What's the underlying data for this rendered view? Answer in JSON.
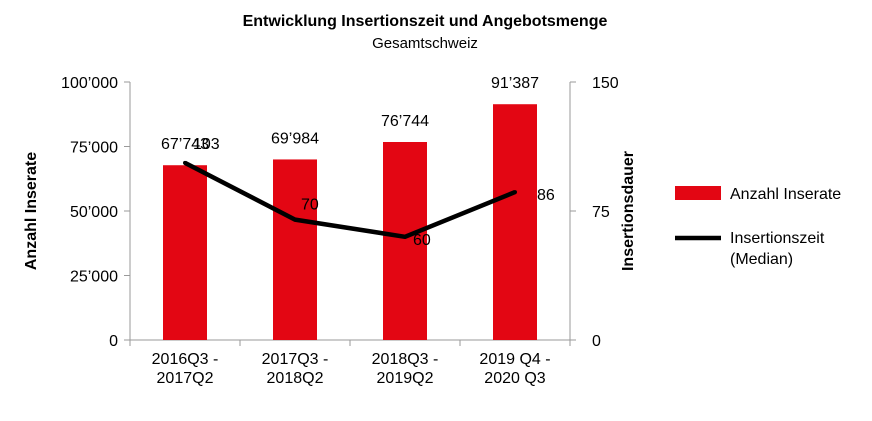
{
  "chart_data": {
    "type": "bar",
    "title": "Entwicklung Insertionszeit und Angebotsmenge",
    "subtitle": "Gesamtschweiz",
    "categories": [
      [
        "2016Q3 -",
        "2017Q2"
      ],
      [
        "2017Q3 -",
        "2018Q2"
      ],
      [
        "2018Q3 -",
        "2019Q2"
      ],
      [
        "2019 Q4 -",
        "2020 Q3"
      ]
    ],
    "ylabel": "Anzahl Inserate",
    "y2label": "Insertionsdauer",
    "ylim": [
      0,
      100000
    ],
    "y2lim": [
      0,
      150
    ],
    "yticks": [
      {
        "value": 0,
        "label": "0"
      },
      {
        "value": 25000,
        "label": "25’000"
      },
      {
        "value": 50000,
        "label": "50’000"
      },
      {
        "value": 75000,
        "label": "75’000"
      },
      {
        "value": 100000,
        "label": "100’000"
      }
    ],
    "y2ticks": [
      {
        "value": 0,
        "label": "0"
      },
      {
        "value": 75,
        "label": "75"
      },
      {
        "value": 150,
        "label": "150"
      }
    ],
    "grid": false,
    "legend_position": "right",
    "series": [
      {
        "name": "Anzahl Inserate",
        "type": "bar",
        "axis": "left",
        "color": "#e30613",
        "values": [
          67743,
          69984,
          76744,
          91387
        ],
        "labels": [
          "67’743",
          "69’984",
          "76’744",
          "91’387"
        ]
      },
      {
        "name": "Insertionszeit (Median)",
        "legend_lines": [
          "Insertionszeit",
          "(Median)"
        ],
        "type": "line",
        "axis": "right",
        "color": "#000000",
        "values": [
          103,
          70,
          60,
          86
        ],
        "labels": [
          "103",
          "70",
          "60",
          "86"
        ]
      }
    ]
  }
}
